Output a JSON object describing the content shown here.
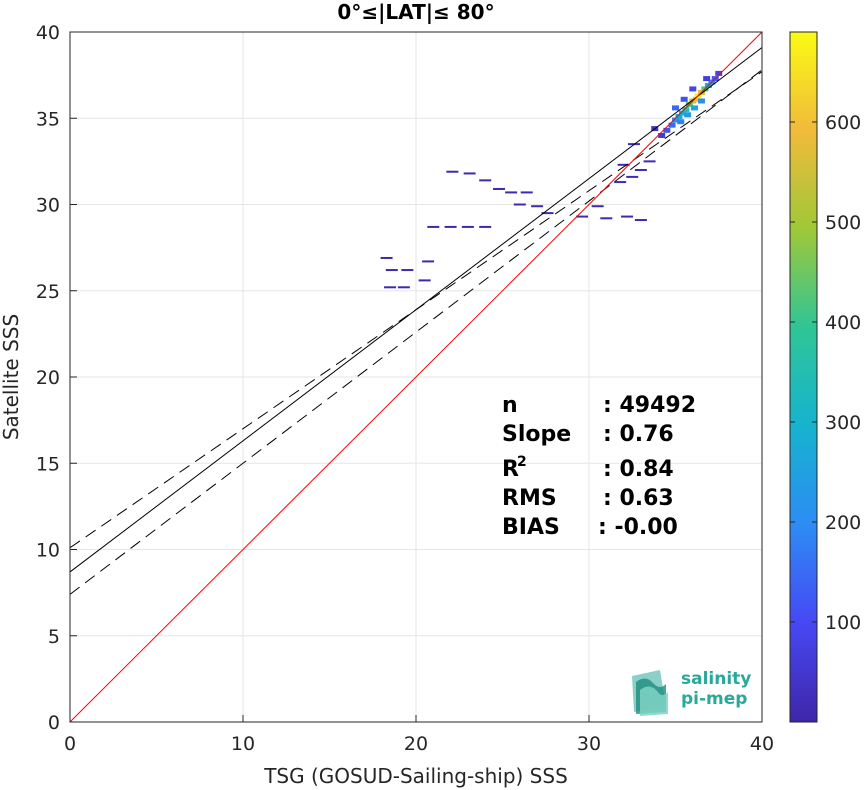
{
  "chart_data": {
    "type": "heatmap",
    "title": "0°≤|LAT|≤ 80°",
    "xlabel": "TSG (GOSUD-Sailing-ship) SSS",
    "ylabel": "Satellite SSS",
    "xlim": [
      0,
      40
    ],
    "ylim": [
      0,
      40
    ],
    "xticks": [
      "0",
      "10",
      "20",
      "30",
      "40"
    ],
    "yticks": [
      "0",
      "5",
      "10",
      "15",
      "20",
      "25",
      "30",
      "35",
      "40"
    ],
    "grid": true,
    "colorbar": {
      "colormap": "parula",
      "range": [
        0,
        690
      ],
      "ticks": [
        "100",
        "200",
        "300",
        "400",
        "500",
        "600"
      ],
      "colors": [
        "#3e26a8",
        "#4748f4",
        "#2d8cf4",
        "#16b3cf",
        "#2fc596",
        "#9fc838",
        "#f2ba3b",
        "#f9fb15"
      ]
    },
    "lines": {
      "one_to_one": {
        "slope": 1,
        "intercept": 0,
        "color": "#ff0000"
      },
      "regression": {
        "slope": 0.76,
        "intercept": 8.7,
        "color": "#000000"
      },
      "upper_bound": {
        "slope": 0.69,
        "intercept": 10.1,
        "color": "#000000",
        "style": "dashed"
      },
      "lower_bound": {
        "slope": 0.76,
        "intercept": 7.4,
        "color": "#000000",
        "style": "dashed"
      }
    },
    "scatter_points": [
      {
        "x": 34.5,
        "y": 34.3,
        "v": 120
      },
      {
        "x": 34.8,
        "y": 34.6,
        "v": 150
      },
      {
        "x": 35.0,
        "y": 34.9,
        "v": 210
      },
      {
        "x": 35.2,
        "y": 35.1,
        "v": 260
      },
      {
        "x": 35.4,
        "y": 35.3,
        "v": 300
      },
      {
        "x": 35.6,
        "y": 35.5,
        "v": 350
      },
      {
        "x": 35.8,
        "y": 35.8,
        "v": 420
      },
      {
        "x": 36.0,
        "y": 36.0,
        "v": 520
      },
      {
        "x": 36.2,
        "y": 36.1,
        "v": 600
      },
      {
        "x": 36.3,
        "y": 36.3,
        "v": 680
      },
      {
        "x": 36.5,
        "y": 36.5,
        "v": 560
      },
      {
        "x": 36.7,
        "y": 36.7,
        "v": 420
      },
      {
        "x": 36.9,
        "y": 36.9,
        "v": 300
      },
      {
        "x": 37.1,
        "y": 37.1,
        "v": 200
      },
      {
        "x": 37.3,
        "y": 37.3,
        "v": 120
      },
      {
        "x": 37.5,
        "y": 37.6,
        "v": 80
      },
      {
        "x": 35.3,
        "y": 34.8,
        "v": 180
      },
      {
        "x": 35.7,
        "y": 35.2,
        "v": 230
      },
      {
        "x": 36.1,
        "y": 35.6,
        "v": 260
      },
      {
        "x": 36.5,
        "y": 36.0,
        "v": 200
      },
      {
        "x": 35.0,
        "y": 35.6,
        "v": 140
      },
      {
        "x": 35.5,
        "y": 36.1,
        "v": 110
      },
      {
        "x": 36.0,
        "y": 36.7,
        "v": 90
      },
      {
        "x": 36.8,
        "y": 37.3,
        "v": 70
      },
      {
        "x": 34.2,
        "y": 34.0,
        "v": 60
      },
      {
        "x": 33.8,
        "y": 34.4,
        "v": 40
      },
      {
        "x": 32.6,
        "y": 33.5,
        "v": 20
      },
      {
        "x": 33.0,
        "y": 32.0,
        "v": 20
      },
      {
        "x": 33.5,
        "y": 32.5,
        "v": 15
      },
      {
        "x": 32.0,
        "y": 32.3,
        "v": 15
      },
      {
        "x": 31.8,
        "y": 31.3,
        "v": 15
      },
      {
        "x": 32.5,
        "y": 31.6,
        "v": 15
      },
      {
        "x": 32.2,
        "y": 29.3,
        "v": 10
      },
      {
        "x": 33.0,
        "y": 29.1,
        "v": 10
      },
      {
        "x": 31.0,
        "y": 29.2,
        "v": 10
      },
      {
        "x": 29.6,
        "y": 29.3,
        "v": 10
      },
      {
        "x": 30.5,
        "y": 29.9,
        "v": 10
      },
      {
        "x": 22.1,
        "y": 31.9,
        "v": 8
      },
      {
        "x": 23.1,
        "y": 31.8,
        "v": 8
      },
      {
        "x": 24.0,
        "y": 31.4,
        "v": 8
      },
      {
        "x": 24.8,
        "y": 30.9,
        "v": 8
      },
      {
        "x": 25.5,
        "y": 30.7,
        "v": 8
      },
      {
        "x": 26.4,
        "y": 30.7,
        "v": 8
      },
      {
        "x": 26.0,
        "y": 30.0,
        "v": 8
      },
      {
        "x": 27.0,
        "y": 29.9,
        "v": 8
      },
      {
        "x": 27.6,
        "y": 29.5,
        "v": 8
      },
      {
        "x": 21.0,
        "y": 28.7,
        "v": 8
      },
      {
        "x": 22.0,
        "y": 28.7,
        "v": 8
      },
      {
        "x": 23.0,
        "y": 28.7,
        "v": 8
      },
      {
        "x": 24.0,
        "y": 28.7,
        "v": 8
      },
      {
        "x": 18.3,
        "y": 26.9,
        "v": 8
      },
      {
        "x": 18.6,
        "y": 26.2,
        "v": 8
      },
      {
        "x": 19.5,
        "y": 26.2,
        "v": 8
      },
      {
        "x": 20.7,
        "y": 26.7,
        "v": 8
      },
      {
        "x": 18.5,
        "y": 25.2,
        "v": 8
      },
      {
        "x": 19.3,
        "y": 25.2,
        "v": 8
      },
      {
        "x": 20.5,
        "y": 25.6,
        "v": 8
      }
    ],
    "stats": [
      {
        "label": "n",
        "value": ": 49492"
      },
      {
        "label": "Slope",
        "value": ": 0.76"
      },
      {
        "label": "R",
        "sup": "2",
        "value": ": 0.84"
      },
      {
        "label": "RMS",
        "value": ": 0.63"
      },
      {
        "label": "BIAS",
        "value": ": -0.00"
      }
    ]
  },
  "logo": {
    "line1": "salinity",
    "line2": "pi-mep",
    "color": "#2aa89a"
  }
}
